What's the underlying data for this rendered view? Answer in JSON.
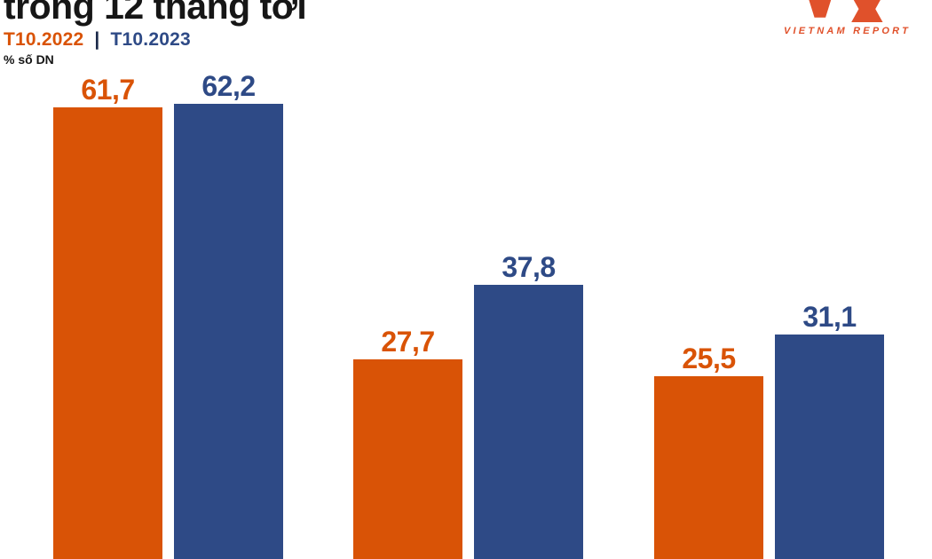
{
  "header": {
    "title": "trong 12 tháng tới",
    "legend": {
      "items": [
        {
          "label": "T10.2022",
          "color": "#D95306"
        },
        {
          "label": "T10.2023",
          "color": "#2E4A86"
        }
      ],
      "separator": "|"
    },
    "unit_label": "% số DN"
  },
  "logo": {
    "text": "VIETNAM REPORT",
    "color": "#E0512B"
  },
  "colors": {
    "orange": "#D95306",
    "blue": "#2E4A86",
    "title_text": "#161616",
    "background": "#ffffff"
  },
  "chart_data": {
    "type": "bar",
    "categories": [
      "",
      "",
      ""
    ],
    "series": [
      {
        "name": "T10.2022",
        "color": "#D95306",
        "values": [
          61.7,
          27.7,
          25.5
        ],
        "labels": [
          "61,7",
          "27,7",
          "25,5"
        ]
      },
      {
        "name": "T10.2023",
        "color": "#2E4A86",
        "values": [
          62.2,
          37.8,
          31.1
        ],
        "labels": [
          "62,2",
          "37,8",
          "31,1"
        ]
      }
    ],
    "title": "trong 12 tháng tới",
    "ylabel": "% số DN",
    "value_format": "comma-decimal",
    "grid": false,
    "axes_visible": false,
    "legend_position": "top-left",
    "bars_clipped_at_bottom": true
  }
}
